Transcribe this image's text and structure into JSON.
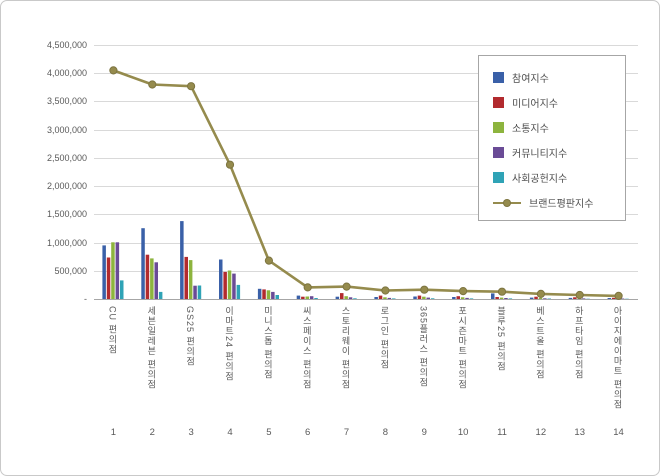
{
  "window": {
    "title": "브랜드평판지수 차트"
  },
  "colors": {
    "grid": "#d9d9d9",
    "axis_baseline": "#a6a6a6",
    "text": "#595959",
    "legend_border": "#a6a6a6",
    "background": "#ffffff",
    "window_border": "#c9c9c9"
  },
  "chart_data": {
    "type": "bar",
    "subtype": "grouped-bars-with-line-overlay",
    "title": "",
    "xlabel": "",
    "ylabel": "",
    "grid": true,
    "legend_position": "top-right",
    "y_axis": {
      "min": 0,
      "max": 4500000,
      "step": 500000,
      "zero_label": "-"
    },
    "categories": [
      "CU 편의점",
      "세븐일레븐 편의점",
      "GS25 편의점",
      "이마트24 편의점",
      "미니스톱 편의점",
      "씨스페이스 편의점",
      "스토리웨이 편의점",
      "로그인 편의점",
      "365플러스 편의점",
      "포시즌마트 편의점",
      "블루25 편의점",
      "베스트올 편의점",
      "하프타임 편의점",
      "아이지에이마트 편의점"
    ],
    "ranks": [
      "1",
      "2",
      "3",
      "4",
      "5",
      "6",
      "7",
      "8",
      "9",
      "10",
      "11",
      "12",
      "13",
      "14"
    ],
    "bar_series": [
      {
        "name": "참여지수",
        "color": "#3A60A8",
        "values": [
          950000,
          1255000,
          1380000,
          700000,
          180000,
          60000,
          40000,
          35000,
          45000,
          35000,
          100000,
          25000,
          20000,
          18000
        ]
      },
      {
        "name": "미디어지수",
        "color": "#B22A2E",
        "values": [
          735000,
          785000,
          745000,
          480000,
          170000,
          40000,
          105000,
          60000,
          60000,
          50000,
          35000,
          40000,
          30000,
          22000
        ]
      },
      {
        "name": "소통지수",
        "color": "#8DB43E",
        "values": [
          1005000,
          720000,
          690000,
          505000,
          155000,
          45000,
          50000,
          30000,
          40000,
          30000,
          25000,
          20000,
          12000,
          10000
        ]
      },
      {
        "name": "커뮤니티지수",
        "color": "#6A4B96",
        "values": [
          1005000,
          650000,
          235000,
          450000,
          125000,
          50000,
          30000,
          20000,
          25000,
          20000,
          18000,
          12000,
          10000,
          8000
        ]
      },
      {
        "name": "사회공헌지수",
        "color": "#2FA3B6",
        "values": [
          330000,
          125000,
          240000,
          250000,
          70000,
          18000,
          12000,
          10000,
          12000,
          10000,
          10000,
          8000,
          6000,
          5000
        ]
      }
    ],
    "line_series": {
      "name": "브랜드평판지수",
      "color": "#958B4D",
      "values": [
        4050000,
        3800000,
        3770000,
        2380000,
        680000,
        205000,
        220000,
        150000,
        165000,
        140000,
        130000,
        90000,
        70000,
        55000
      ]
    }
  }
}
